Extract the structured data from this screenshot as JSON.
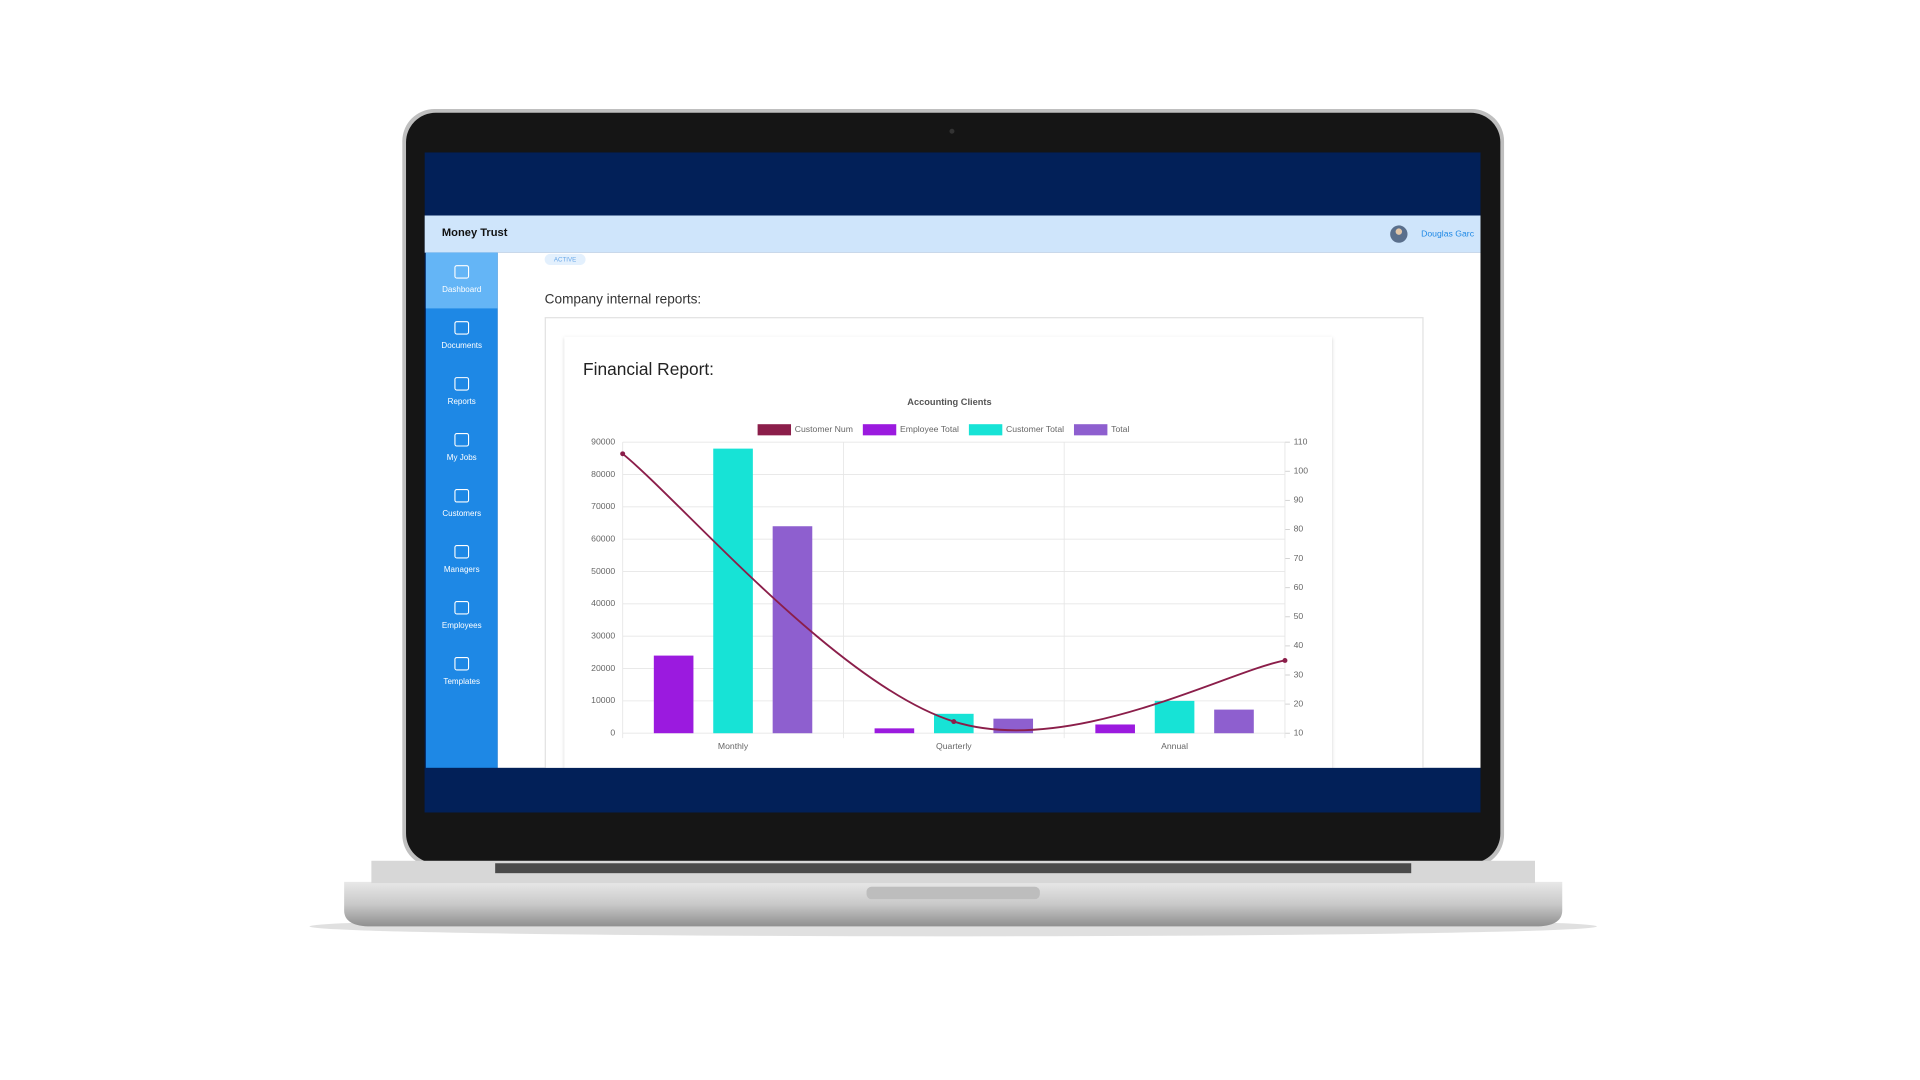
{
  "app": {
    "brand": "Money Trust",
    "user": "Douglas Garc",
    "nav": [
      "Dashboard",
      "Documents",
      "Reports",
      "My Jobs",
      "Customers",
      "Managers",
      "Employees",
      "Templates"
    ],
    "badge": "ACTIVE",
    "section_heading": "Company internal reports:",
    "card_title": "Financial Report:"
  },
  "chart_data": {
    "type": "bar",
    "title": "Accounting Clients",
    "categories": [
      "Monthly",
      "Quarterly",
      "Annual"
    ],
    "series": [
      {
        "name": "Customer Num",
        "color": "#8b1e4a",
        "type": "line",
        "axis": "y2",
        "values": [
          106,
          14,
          35
        ]
      },
      {
        "name": "Employee Total",
        "color": "#9b1adf",
        "values": [
          24000,
          1500,
          2700
        ]
      },
      {
        "name": "Customer Total",
        "color": "#17e3d6",
        "values": [
          88000,
          6000,
          10000
        ]
      },
      {
        "name": "Total",
        "color": "#8e5fcf",
        "values": [
          64000,
          4500,
          7300
        ]
      }
    ],
    "ylim": [
      0,
      90000
    ],
    "yticks": [
      0,
      10000,
      20000,
      30000,
      40000,
      50000,
      60000,
      70000,
      80000,
      90000
    ],
    "y2lim": [
      10,
      110
    ],
    "y2ticks": [
      10,
      20,
      30,
      40,
      50,
      60,
      70,
      80,
      90,
      100,
      110
    ],
    "grid": true,
    "legend": "top"
  }
}
